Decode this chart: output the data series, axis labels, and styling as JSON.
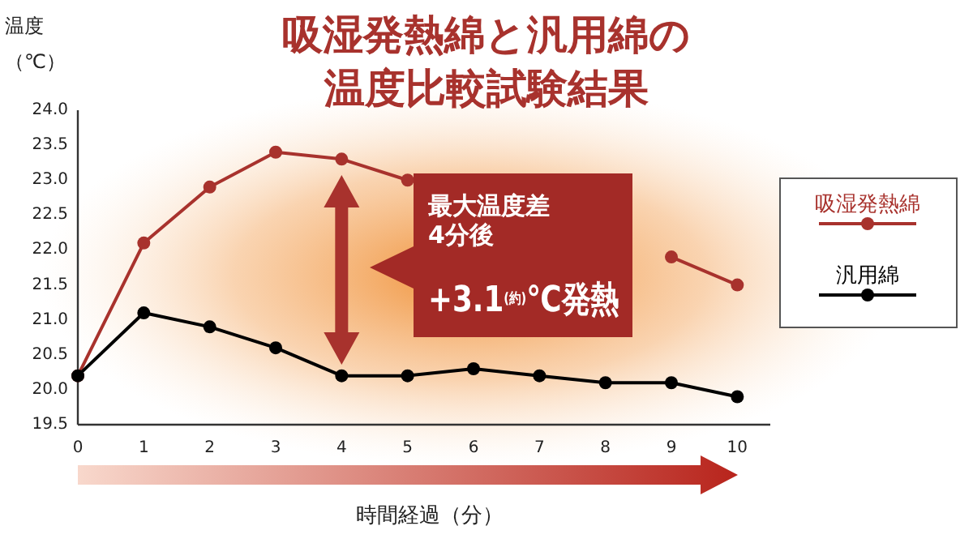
{
  "chart_data": {
    "type": "line",
    "title": "吸湿発熱綿と汎用綿の温度比較試験結果",
    "xlabel": "時間経過（分）",
    "ylabel": "温度（℃）",
    "x": [
      0,
      1,
      2,
      3,
      4,
      5,
      6,
      7,
      8,
      9,
      10
    ],
    "series": [
      {
        "name": "吸湿発熱綿",
        "color": "#a8322d",
        "values": [
          20.2,
          22.1,
          22.9,
          23.4,
          23.3,
          23.0,
          null,
          null,
          null,
          21.9,
          21.5
        ]
      },
      {
        "name": "汎用綿",
        "color": "#000000",
        "values": [
          20.2,
          21.1,
          20.9,
          20.6,
          20.2,
          20.2,
          20.3,
          20.2,
          20.1,
          20.1,
          19.9
        ]
      }
    ],
    "xlim": [
      0,
      10.5
    ],
    "xticks": [
      0,
      1,
      2,
      3,
      4,
      5,
      6,
      7,
      8,
      9,
      10
    ],
    "ylim": [
      19.5,
      24.0
    ],
    "yticks": [
      {
        "value": 19.5,
        "label": "19.5"
      },
      {
        "value": 20,
        "label": "20.0"
      },
      {
        "value": 20.5,
        "label": "20.5"
      },
      {
        "value": 21,
        "label": "21.0"
      },
      {
        "value": 21.5,
        "label": "21.5"
      },
      {
        "value": 22,
        "label": "22.0"
      },
      {
        "value": 22.5,
        "label": "22.5"
      },
      {
        "value": 23,
        "label": "23.0"
      },
      {
        "value": 23.5,
        "label": "23.5"
      },
      {
        "value": 24,
        "label": "24.0"
      }
    ],
    "annotations": [
      "最大温度差",
      "4分後",
      "+3.1$^{(約)}$℃発熱"
    ],
    "legend": "right",
    "marker": "circle",
    "line_style": "solid",
    "grid": false
  }
}
